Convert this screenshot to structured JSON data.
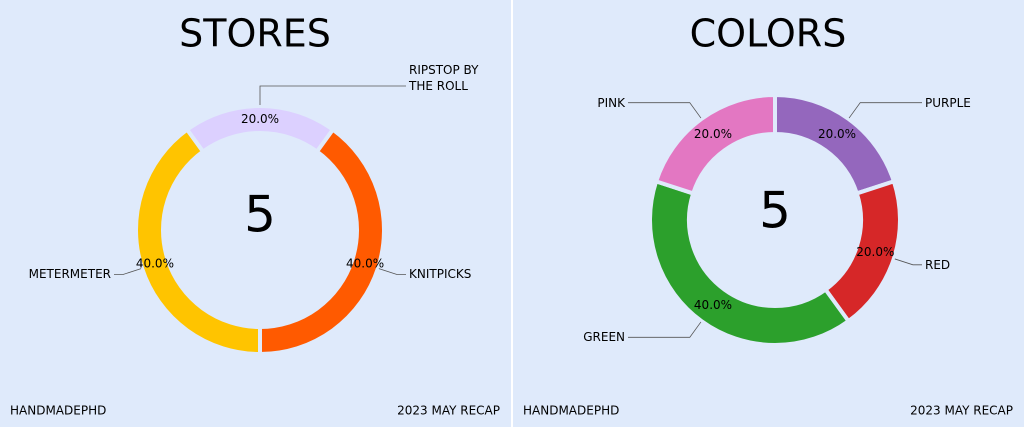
{
  "chart_data": [
    {
      "type": "donut",
      "title": "STORES",
      "center_text": "5",
      "categories": [
        "RIPSTOP BY THE ROLL",
        "KNITPICKS",
        "METERMETER"
      ],
      "values": [
        20,
        40,
        40
      ],
      "value_labels": [
        "20.0%",
        "40.0%",
        "40.0%"
      ],
      "colors": [
        "#dcd0ff",
        "#ff5a00",
        "#ffc400"
      ],
      "footer_left": "HANDMADEPHD",
      "footer_right": "2023 MAY RECAP"
    },
    {
      "type": "donut",
      "title": "COLORS",
      "center_text": "5",
      "categories": [
        "PURPLE",
        "RED",
        "GREEN",
        "PINK"
      ],
      "values": [
        20,
        20,
        40,
        20
      ],
      "value_labels": [
        "20.0%",
        "20.0%",
        "40.0%",
        "20.0%"
      ],
      "colors": [
        "#9467bd",
        "#d62728",
        "#2ca02c",
        "#e377c2"
      ],
      "footer_left": "HANDMADEPHD",
      "footer_right": "2023 MAY RECAP"
    }
  ]
}
